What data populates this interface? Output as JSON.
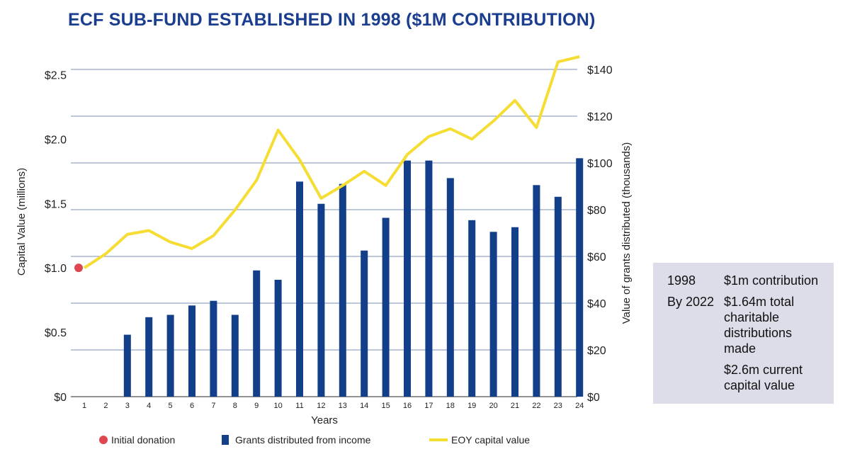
{
  "title": "ECF SUB-FUND ESTABLISHED IN 1998 ($1M CONTRIBUTION)",
  "colors": {
    "title": "#1a3d8f",
    "bar": "#123e8a",
    "line": "#f5dd33",
    "dot": "#e0464f",
    "grid": "#7a8fb5",
    "box": "#dcdde9"
  },
  "chart_data": {
    "type": "bar+line",
    "title": "ECF SUB-FUND ESTABLISHED IN 1998 ($1M CONTRIBUTION)",
    "xlabel": "Years",
    "ylabel_left": "Capital Value (millions)",
    "ylabel_right": "Value of grants distributed (thousands)",
    "categories": [
      "1",
      "2",
      "3",
      "4",
      "5",
      "6",
      "7",
      "8",
      "9",
      "10",
      "11",
      "12",
      "13",
      "14",
      "15",
      "16",
      "17",
      "18",
      "19",
      "20",
      "21",
      "22",
      "23",
      "24"
    ],
    "ylim_left": [
      0,
      2.75
    ],
    "ylim_right": [
      0,
      151.5
    ],
    "left_ticks": [
      {
        "value": 0,
        "label": "$0"
      },
      {
        "value": 0.5,
        "label": "$0.5"
      },
      {
        "value": 1.0,
        "label": "$1.0"
      },
      {
        "value": 1.5,
        "label": "$1.5"
      },
      {
        "value": 2.0,
        "label": "$2.0"
      },
      {
        "value": 2.5,
        "label": "$2.5"
      }
    ],
    "right_ticks": [
      {
        "value": 0,
        "label": "$0"
      },
      {
        "value": 20,
        "label": "$20"
      },
      {
        "value": 40,
        "label": "$40"
      },
      {
        "value": 60,
        "label": "$60"
      },
      {
        "value": 80,
        "label": "$80"
      },
      {
        "value": 100,
        "label": "$100"
      },
      {
        "value": 120,
        "label": "$120"
      },
      {
        "value": 140,
        "label": "$140"
      }
    ],
    "series": [
      {
        "name": "Grants distributed from income",
        "type": "bar",
        "axis": "right",
        "values": [
          0,
          0,
          26.5,
          34,
          35,
          39,
          41,
          35,
          54,
          50,
          92,
          82.5,
          91,
          62.5,
          76.5,
          101,
          101,
          93.5,
          75.5,
          70.5,
          72.5,
          90.5,
          85.5,
          102
        ]
      },
      {
        "name": "EOY capital value",
        "type": "line",
        "axis": "left",
        "values": [
          1.0,
          1.11,
          1.26,
          1.29,
          1.2,
          1.15,
          1.25,
          1.45,
          1.68,
          2.07,
          1.84,
          1.54,
          1.64,
          1.75,
          1.64,
          1.88,
          2.02,
          2.08,
          2.0,
          2.14,
          2.3,
          2.09,
          2.6,
          2.64
        ]
      },
      {
        "name": "Initial donation",
        "type": "point",
        "axis": "left",
        "x": "1",
        "value": 1.0
      }
    ],
    "legend": [
      {
        "label": "Initial donation",
        "kind": "dot"
      },
      {
        "label": "Grants distributed from income",
        "kind": "bar"
      },
      {
        "label": "EOY capital value",
        "kind": "line"
      }
    ],
    "grid": true,
    "legend_position": "bottom"
  },
  "info_box": {
    "rows": [
      {
        "year": "1998",
        "text": "$1m contribution"
      },
      {
        "year": "By 2022",
        "text": "$1.64m total charitable distributions made"
      },
      {
        "year": "",
        "text": "$2.6m current capital value"
      }
    ]
  }
}
